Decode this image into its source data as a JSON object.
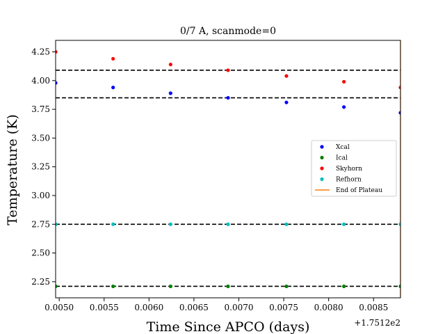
{
  "chart_data": {
    "type": "scatter",
    "title": "0/7 A, scanmode=0",
    "xlabel": "Time Since APCO (days)",
    "ylabel": "Temperature (K)",
    "x_offset_label": "+1.7512e2",
    "xlim": [
      0.00496,
      0.0088
    ],
    "ylim": [
      2.11,
      4.35
    ],
    "x_ticks": [
      0.005,
      0.0055,
      0.006,
      0.0065,
      0.007,
      0.0075,
      0.008,
      0.0085
    ],
    "x_tick_labels": [
      "0.0050",
      "0.0055",
      "0.0060",
      "0.0065",
      "0.0070",
      "0.0075",
      "0.0080",
      "0.0085"
    ],
    "y_ticks": [
      2.25,
      2.5,
      2.75,
      3.0,
      3.25,
      3.5,
      3.75,
      4.0,
      4.25
    ],
    "y_tick_labels": [
      "2.25",
      "2.50",
      "2.75",
      "3.00",
      "3.25",
      "3.50",
      "3.75",
      "4.00",
      "4.25"
    ],
    "grid": false,
    "legend_position": "center-right",
    "series": [
      {
        "name": "Xcal",
        "color": "#0000ff",
        "x": [
          0.00496,
          0.0056,
          0.00624,
          0.00688,
          0.00753,
          0.00817,
          0.0088
        ],
        "y": [
          3.98,
          3.94,
          3.89,
          3.85,
          3.81,
          3.77,
          3.72
        ]
      },
      {
        "name": "Ical",
        "color": "#008000",
        "x": [
          0.00496,
          0.0056,
          0.00624,
          0.00688,
          0.00753,
          0.00817,
          0.0088
        ],
        "y": [
          2.21,
          2.21,
          2.21,
          2.21,
          2.21,
          2.21,
          2.21
        ]
      },
      {
        "name": "Skyhorn",
        "color": "#ff0000",
        "x": [
          0.00496,
          0.0056,
          0.00624,
          0.00688,
          0.00753,
          0.00817,
          0.0088
        ],
        "y": [
          4.25,
          4.19,
          4.14,
          4.09,
          4.04,
          3.99,
          3.94
        ]
      },
      {
        "name": "Refhorn",
        "color": "#00bfbf",
        "x": [
          0.00496,
          0.0056,
          0.00624,
          0.00688,
          0.00753,
          0.00817,
          0.0088
        ],
        "y": [
          2.75,
          2.75,
          2.75,
          2.75,
          2.75,
          2.75,
          2.75
        ]
      }
    ],
    "end_of_plateau": {
      "name": "End of Plateau",
      "color": "#ff7f0e",
      "x": 0.0088
    },
    "reference_lines": {
      "color": "#000000",
      "style": "dashed",
      "y": [
        4.09,
        3.85,
        2.75,
        2.21
      ]
    }
  }
}
